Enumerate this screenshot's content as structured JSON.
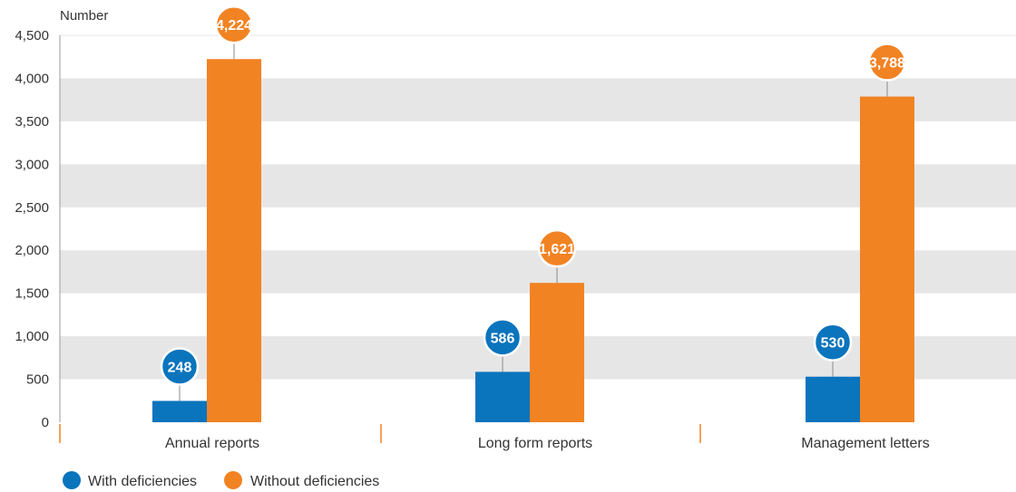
{
  "chart_data": {
    "type": "bar",
    "title": "",
    "ylabel": "Number",
    "xlabel": "",
    "ylim": [
      0,
      4500
    ],
    "yticks": [
      0,
      500,
      1000,
      1500,
      2000,
      2500,
      3000,
      3500,
      4000,
      4500
    ],
    "ytick_labels": [
      "0",
      "500",
      "1,000",
      "1,500",
      "2,000",
      "2,500",
      "3,000",
      "3,500",
      "4,000",
      "4,500"
    ],
    "categories": [
      "Annual reports",
      "Long form reports",
      "Management letters"
    ],
    "series": [
      {
        "name": "With deficiencies",
        "color": "#0a74bd",
        "values": [
          248,
          586,
          530
        ],
        "labels": [
          "248",
          "586",
          "530"
        ]
      },
      {
        "name": "Without deficiencies",
        "color": "#f18323",
        "values": [
          4224,
          1621,
          3788
        ],
        "labels": [
          "4,224",
          "1,621",
          "3,788"
        ]
      }
    ],
    "grid": "alternating-bands",
    "band_color": "#e6e6e7",
    "separator_color": "#f18323",
    "legend": "bottom-left"
  }
}
